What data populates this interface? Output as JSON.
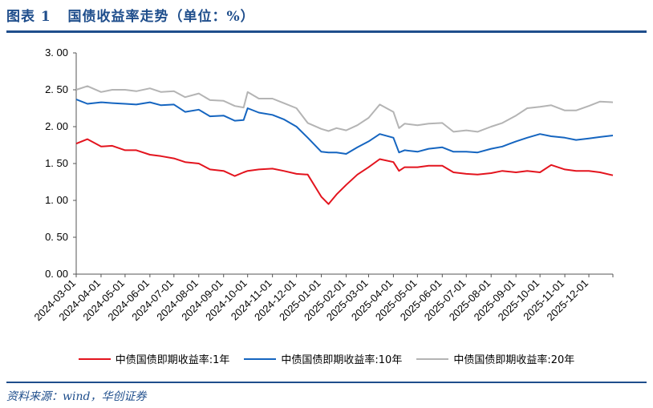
{
  "header": {
    "title": "图表 1   国债收益率走势（单位：%）"
  },
  "footer": {
    "source": "资料来源：wind，华创证券"
  },
  "legend": [
    {
      "label": "中债国债即期收益率:1年",
      "color": "#e3141e"
    },
    {
      "label": "中债国债即期收益率:10年",
      "color": "#1565c0"
    },
    {
      "label": "中债国债即期收益率:20年",
      "color": "#b4b4b4"
    }
  ],
  "chart_data": {
    "type": "line",
    "title": "国债收益率走势（单位：%）",
    "xlabel": "",
    "ylabel": "",
    "ylim": [
      0,
      3
    ],
    "yticks": [
      "0.00",
      "0.50",
      "1.00",
      "1.50",
      "2.00",
      "2.50",
      "3.00"
    ],
    "xticks": [
      "2024-03-01",
      "2024-04-01",
      "2024-05-01",
      "2024-06-01",
      "2024-07-01",
      "2024-08-01",
      "2024-09-01",
      "2024-10-01",
      "2024-11-01",
      "2024-12-01",
      "2025-01-01",
      "2025-02-01",
      "2025-03-01",
      "2025-04-01",
      "2025-05-01",
      "2025-06-01",
      "2025-07-01",
      "2025-08-01",
      "2025-09-01",
      "2025-10-01",
      "2025-11-01",
      "2025-12-01"
    ],
    "grid": false,
    "legend_position": "bottom",
    "x": [
      "2024-03-01",
      "2024-03-15",
      "2024-04-01",
      "2024-04-15",
      "2024-05-01",
      "2024-05-15",
      "2024-06-01",
      "2024-06-15",
      "2024-07-01",
      "2024-07-15",
      "2024-08-01",
      "2024-08-15",
      "2024-09-01",
      "2024-09-15",
      "2024-09-26",
      "2024-10-01",
      "2024-10-15",
      "2024-11-01",
      "2024-11-15",
      "2024-12-01",
      "2024-12-15",
      "2025-01-01",
      "2025-01-10",
      "2025-01-20",
      "2025-02-01",
      "2025-02-15",
      "2025-03-01",
      "2025-03-15",
      "2025-04-01",
      "2025-04-08",
      "2025-04-15",
      "2025-05-01",
      "2025-05-15",
      "2025-06-01",
      "2025-06-15",
      "2025-07-01",
      "2025-07-15",
      "2025-08-01",
      "2025-08-15",
      "2025-09-01",
      "2025-09-15",
      "2025-10-01",
      "2025-10-15",
      "2025-11-01",
      "2025-11-15",
      "2025-12-01",
      "2025-12-15",
      "2025-12-31"
    ],
    "series": [
      {
        "name": "中债国债即期收益率:1年",
        "values": [
          1.77,
          1.83,
          1.73,
          1.74,
          1.68,
          1.68,
          1.62,
          1.6,
          1.57,
          1.52,
          1.5,
          1.42,
          1.4,
          1.33,
          1.38,
          1.4,
          1.42,
          1.43,
          1.4,
          1.36,
          1.35,
          1.05,
          0.95,
          1.08,
          1.21,
          1.35,
          1.45,
          1.56,
          1.52,
          1.4,
          1.45,
          1.45,
          1.47,
          1.47,
          1.38,
          1.36,
          1.35,
          1.37,
          1.4,
          1.38,
          1.4,
          1.38,
          1.48,
          1.42,
          1.4,
          1.4,
          1.38,
          1.34
        ]
      },
      {
        "name": "中债国债即期收益率:10年",
        "values": [
          2.37,
          2.31,
          2.33,
          2.32,
          2.31,
          2.3,
          2.33,
          2.29,
          2.3,
          2.2,
          2.23,
          2.14,
          2.15,
          2.08,
          2.09,
          2.25,
          2.19,
          2.16,
          2.1,
          2.0,
          1.85,
          1.66,
          1.65,
          1.65,
          1.63,
          1.72,
          1.8,
          1.9,
          1.85,
          1.65,
          1.68,
          1.66,
          1.7,
          1.72,
          1.66,
          1.66,
          1.65,
          1.7,
          1.73,
          1.8,
          1.85,
          1.9,
          1.87,
          1.85,
          1.82,
          1.84,
          1.86,
          1.88
        ]
      },
      {
        "name": "中债国债即期收益率:20年",
        "values": [
          2.5,
          2.55,
          2.47,
          2.5,
          2.5,
          2.48,
          2.52,
          2.47,
          2.48,
          2.4,
          2.45,
          2.36,
          2.35,
          2.28,
          2.26,
          2.47,
          2.38,
          2.38,
          2.32,
          2.25,
          2.05,
          1.97,
          1.94,
          1.98,
          1.95,
          2.02,
          2.12,
          2.3,
          2.2,
          1.98,
          2.04,
          2.02,
          2.04,
          2.05,
          1.93,
          1.95,
          1.93,
          2.0,
          2.05,
          2.15,
          2.25,
          2.27,
          2.29,
          2.22,
          2.22,
          2.28,
          2.34,
          2.33
        ]
      }
    ]
  }
}
